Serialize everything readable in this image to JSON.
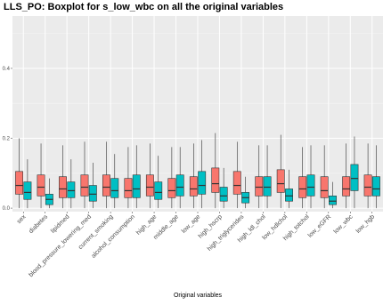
{
  "chart_data": {
    "type": "boxplot",
    "title": "LLS_PO: Boxplot for s_low_wbc on all the original variables",
    "xlabel": "Original variables",
    "ylabel": "",
    "ylim": [
      -0.01,
      0.55
    ],
    "yticks": [
      0.0,
      0.2,
      0.4
    ],
    "ytick_labels": [
      "0.0",
      "0.2",
      "0.4"
    ],
    "grid": true,
    "legend": "none",
    "categories": [
      "sex",
      "diabetes",
      "lipidmed",
      "blood_pressure_lowering_med",
      "current_smoking",
      "alcohol_consumption",
      "high_age",
      "middle_age",
      "low_age",
      "high_hscrp",
      "high_triglycerides",
      "high_ldl_chol",
      "low_hdlchol",
      "high_totchol",
      "low_eGFR",
      "low_wbc",
      "low_hgb"
    ],
    "series": [
      {
        "color": "#F8766D",
        "boxes": [
          {
            "min": 0.0,
            "q1": 0.04,
            "median": 0.065,
            "q3": 0.105,
            "max": 0.2
          },
          {
            "min": 0.0,
            "q1": 0.035,
            "median": 0.06,
            "q3": 0.095,
            "max": 0.185
          },
          {
            "min": 0.0,
            "q1": 0.03,
            "median": 0.055,
            "q3": 0.09,
            "max": 0.18
          },
          {
            "min": 0.0,
            "q1": 0.035,
            "median": 0.06,
            "q3": 0.095,
            "max": 0.19
          },
          {
            "min": 0.0,
            "q1": 0.035,
            "median": 0.06,
            "q3": 0.095,
            "max": 0.19
          },
          {
            "min": 0.0,
            "q1": 0.03,
            "median": 0.05,
            "q3": 0.085,
            "max": 0.175
          },
          {
            "min": 0.0,
            "q1": 0.035,
            "median": 0.06,
            "q3": 0.095,
            "max": 0.185
          },
          {
            "min": 0.0,
            "q1": 0.03,
            "median": 0.05,
            "q3": 0.085,
            "max": 0.175
          },
          {
            "min": 0.0,
            "q1": 0.035,
            "median": 0.055,
            "q3": 0.09,
            "max": 0.185
          },
          {
            "min": 0.0,
            "q1": 0.045,
            "median": 0.07,
            "q3": 0.115,
            "max": 0.215
          },
          {
            "min": 0.0,
            "q1": 0.04,
            "median": 0.065,
            "q3": 0.105,
            "max": 0.19
          },
          {
            "min": 0.0,
            "q1": 0.035,
            "median": 0.06,
            "q3": 0.09,
            "max": 0.18
          },
          {
            "min": 0.0,
            "q1": 0.045,
            "median": 0.07,
            "q3": 0.11,
            "max": 0.21
          },
          {
            "min": 0.0,
            "q1": 0.03,
            "median": 0.055,
            "q3": 0.09,
            "max": 0.175
          },
          {
            "min": 0.0,
            "q1": 0.03,
            "median": 0.05,
            "q3": 0.09,
            "max": 0.18
          },
          {
            "min": 0.0,
            "q1": 0.035,
            "median": 0.055,
            "q3": 0.09,
            "max": 0.185
          },
          {
            "min": 0.0,
            "q1": 0.035,
            "median": 0.06,
            "q3": 0.095,
            "max": 0.185
          }
        ]
      },
      {
        "color": "#00BFC4",
        "boxes": [
          {
            "min": 0.0,
            "q1": 0.025,
            "median": 0.045,
            "q3": 0.075,
            "max": 0.14
          },
          {
            "min": 0.0,
            "q1": 0.01,
            "median": 0.025,
            "q3": 0.04,
            "max": 0.085
          },
          {
            "min": 0.0,
            "q1": 0.03,
            "median": 0.05,
            "q3": 0.075,
            "max": 0.14
          },
          {
            "min": 0.0,
            "q1": 0.02,
            "median": 0.04,
            "q3": 0.065,
            "max": 0.13
          },
          {
            "min": 0.0,
            "q1": 0.03,
            "median": 0.05,
            "q3": 0.085,
            "max": 0.155
          },
          {
            "min": 0.0,
            "q1": 0.03,
            "median": 0.055,
            "q3": 0.095,
            "max": 0.18
          },
          {
            "min": 0.0,
            "q1": 0.025,
            "median": 0.045,
            "q3": 0.075,
            "max": 0.15
          },
          {
            "min": 0.0,
            "q1": 0.035,
            "median": 0.06,
            "q3": 0.095,
            "max": 0.175
          },
          {
            "min": 0.0,
            "q1": 0.04,
            "median": 0.065,
            "q3": 0.105,
            "max": 0.195
          },
          {
            "min": 0.0,
            "q1": 0.02,
            "median": 0.035,
            "q3": 0.06,
            "max": 0.115
          },
          {
            "min": 0.0,
            "q1": 0.015,
            "median": 0.03,
            "q3": 0.045,
            "max": 0.09
          },
          {
            "min": 0.0,
            "q1": 0.035,
            "median": 0.06,
            "q3": 0.09,
            "max": 0.18
          },
          {
            "min": 0.0,
            "q1": 0.02,
            "median": 0.035,
            "q3": 0.055,
            "max": 0.11
          },
          {
            "min": 0.0,
            "q1": 0.035,
            "median": 0.06,
            "q3": 0.095,
            "max": 0.18
          },
          {
            "min": 0.0,
            "q1": 0.01,
            "median": 0.02,
            "q3": 0.035,
            "max": 0.075
          },
          {
            "min": 0.0,
            "q1": 0.05,
            "median": 0.085,
            "q3": 0.125,
            "max": 0.205
          },
          {
            "min": 0.0,
            "q1": 0.035,
            "median": 0.055,
            "q3": 0.09,
            "max": 0.18
          }
        ]
      }
    ]
  }
}
